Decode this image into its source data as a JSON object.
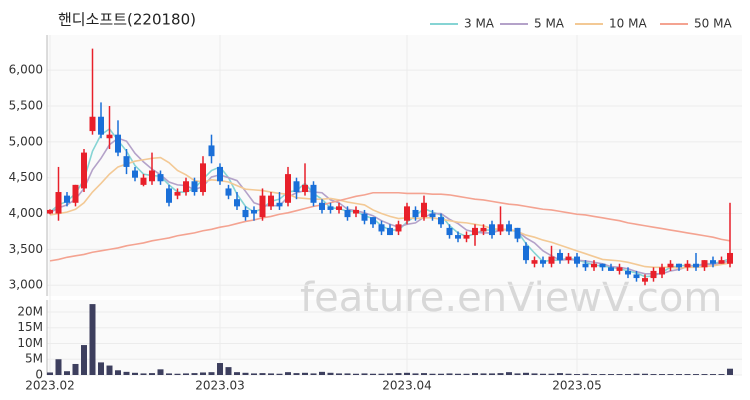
{
  "chart_data": {
    "type": "candlestick",
    "title": "핸디소프트(220180)",
    "watermark": "feature.enViewV.com",
    "categories": [
      "2023.02",
      null,
      null,
      null,
      null,
      null,
      null,
      null,
      null,
      null,
      null,
      null,
      null,
      null,
      null,
      null,
      null,
      null,
      null,
      null,
      "2023.03",
      null,
      null,
      null,
      null,
      null,
      null,
      null,
      null,
      null,
      null,
      null,
      null,
      null,
      null,
      null,
      null,
      null,
      null,
      null,
      null,
      null,
      "2023.04",
      null,
      null,
      null,
      null,
      null,
      null,
      null,
      null,
      null,
      null,
      null,
      null,
      null,
      null,
      null,
      null,
      null,
      null,
      null,
      "2023.05",
      null,
      null,
      null,
      null,
      null,
      null,
      null,
      null,
      null,
      null,
      null,
      null,
      null,
      null,
      null,
      null,
      null,
      null
    ],
    "open": [
      4000,
      4000,
      4250,
      4150,
      4350,
      5150,
      5350,
      5050,
      5100,
      4800,
      4600,
      4400,
      4450,
      4550,
      4350,
      4250,
      4300,
      4450,
      4300,
      4950,
      4650,
      4350,
      4200,
      4050,
      4050,
      3950,
      4100,
      4150,
      4150,
      4450,
      4300,
      4400,
      4150,
      4100,
      4050,
      4050,
      4000,
      4000,
      3950,
      3850,
      3800,
      3750,
      3900,
      4050,
      3950,
      4000,
      3950,
      3800,
      3700,
      3650,
      3700,
      3750,
      3850,
      3750,
      3850,
      3800,
      3550,
      3300,
      3350,
      3300,
      3450,
      3350,
      3400,
      3300,
      3250,
      3300,
      3250,
      3200,
      3200,
      3150,
      3050,
      3100,
      3150,
      3250,
      3300,
      3250,
      3300,
      3250,
      3350,
      3300,
      3300
    ],
    "high": [
      4060,
      4650,
      4300,
      4400,
      4900,
      6300,
      5550,
      5500,
      5300,
      4900,
      4650,
      4550,
      4850,
      4600,
      4400,
      4350,
      4500,
      4500,
      4800,
      5100,
      4700,
      4400,
      4300,
      4100,
      4100,
      4350,
      4300,
      4300,
      4650,
      4500,
      4700,
      4450,
      4200,
      4150,
      4150,
      4100,
      4100,
      4050,
      3950,
      3900,
      3850,
      3900,
      4150,
      4100,
      4250,
      4050,
      4000,
      3850,
      3750,
      3750,
      3850,
      3850,
      3900,
      4100,
      3900,
      3800,
      3600,
      3400,
      3400,
      3550,
      3500,
      3450,
      3450,
      3350,
      3350,
      3300,
      3300,
      3300,
      3250,
      3200,
      3150,
      3250,
      3300,
      3350,
      3300,
      3350,
      3450,
      3350,
      3400,
      3400,
      4150
    ],
    "low": [
      3990,
      3900,
      4100,
      4100,
      4300,
      5100,
      5050,
      4900,
      4800,
      4550,
      4450,
      4380,
      4400,
      4400,
      4100,
      4200,
      4250,
      4250,
      4250,
      4700,
      4400,
      4200,
      4050,
      3900,
      3900,
      3900,
      4050,
      4050,
      4100,
      4200,
      4250,
      4100,
      4000,
      4000,
      4000,
      3900,
      3950,
      3850,
      3800,
      3700,
      3700,
      3700,
      3850,
      3900,
      3900,
      3900,
      3800,
      3650,
      3600,
      3600,
      3550,
      3700,
      3650,
      3700,
      3700,
      3600,
      3300,
      3250,
      3250,
      3250,
      3300,
      3300,
      3250,
      3200,
      3200,
      3200,
      3200,
      3150,
      3100,
      3050,
      3000,
      3050,
      3100,
      3200,
      3200,
      3200,
      3200,
      3200,
      3250,
      3300,
      3250
    ],
    "close": [
      4050,
      4300,
      4150,
      4400,
      4850,
      5350,
      5100,
      5100,
      4850,
      4650,
      4500,
      4500,
      4600,
      4450,
      4150,
      4300,
      4450,
      4300,
      4700,
      4800,
      4450,
      4250,
      4100,
      3950,
      4000,
      4250,
      4250,
      4100,
      4550,
      4300,
      4400,
      4150,
      4050,
      4050,
      4100,
      3950,
      4050,
      3900,
      3850,
      3750,
      3700,
      3850,
      4100,
      3950,
      4150,
      3950,
      3850,
      3700,
      3650,
      3700,
      3800,
      3800,
      3700,
      3850,
      3750,
      3650,
      3350,
      3350,
      3300,
      3400,
      3350,
      3400,
      3300,
      3250,
      3300,
      3250,
      3200,
      3250,
      3150,
      3100,
      3100,
      3200,
      3250,
      3300,
      3250,
      3300,
      3250,
      3350,
      3300,
      3350,
      3450
    ],
    "up_color": "#e8202a",
    "down_color": "#1a6fd8",
    "ylim": [
      2850,
      6490
    ],
    "yticks": [
      {
        "value": 3000,
        "label": "3,000"
      },
      {
        "value": 3500,
        "label": "3,500"
      },
      {
        "value": 4000,
        "label": "4,000"
      },
      {
        "value": 4500,
        "label": "4,500"
      },
      {
        "value": 5000,
        "label": "5,000"
      },
      {
        "value": 5500,
        "label": "5,500"
      },
      {
        "value": 6000,
        "label": "6,000"
      }
    ],
    "series": [
      {
        "name": "3 MA",
        "color": "#86d4d4",
        "values": [
          4020,
          4120,
          4170,
          4280,
          4470,
          4870,
          5100,
          5180,
          5020,
          4870,
          4670,
          4550,
          4530,
          4520,
          4400,
          4300,
          4300,
          4350,
          4480,
          4600,
          4650,
          4500,
          4270,
          4100,
          4020,
          4070,
          4170,
          4200,
          4300,
          4320,
          4420,
          4280,
          4200,
          4080,
          4070,
          4030,
          4030,
          3970,
          3930,
          3830,
          3770,
          3770,
          3880,
          3970,
          4070,
          4020,
          3980,
          3830,
          3730,
          3680,
          3720,
          3770,
          3770,
          3780,
          3770,
          3750,
          3580,
          3450,
          3330,
          3350,
          3350,
          3380,
          3350,
          3320,
          3280,
          3270,
          3250,
          3230,
          3200,
          3170,
          3120,
          3130,
          3180,
          3250,
          3270,
          3280,
          3270,
          3300,
          3300,
          3330,
          3370
        ]
      },
      {
        "name": "5 MA",
        "color": "#b4a2c9",
        "values": [
          4010,
          4080,
          4120,
          4200,
          4350,
          4610,
          4770,
          4960,
          5050,
          5010,
          4840,
          4720,
          4620,
          4540,
          4440,
          4400,
          4390,
          4330,
          4380,
          4510,
          4540,
          4500,
          4460,
          4310,
          4150,
          4110,
          4110,
          4110,
          4230,
          4290,
          4320,
          4300,
          4290,
          4190,
          4150,
          4060,
          4040,
          4010,
          3970,
          3900,
          3850,
          3810,
          3850,
          3870,
          3950,
          4000,
          4000,
          3920,
          3860,
          3770,
          3740,
          3730,
          3730,
          3770,
          3780,
          3750,
          3660,
          3590,
          3480,
          3410,
          3350,
          3360,
          3350,
          3340,
          3320,
          3300,
          3260,
          3250,
          3230,
          3190,
          3160,
          3160,
          3160,
          3200,
          3220,
          3260,
          3270,
          3290,
          3290,
          3310,
          3340
        ]
      },
      {
        "name": "10 MA",
        "color": "#f3c995",
        "values": [
          3980,
          4000,
          4020,
          4060,
          4150,
          4300,
          4420,
          4550,
          4650,
          4690,
          4730,
          4750,
          4770,
          4780,
          4710,
          4600,
          4540,
          4460,
          4440,
          4470,
          4460,
          4440,
          4390,
          4340,
          4330,
          4320,
          4300,
          4280,
          4270,
          4220,
          4210,
          4200,
          4200,
          4210,
          4190,
          4160,
          4140,
          4120,
          4050,
          4000,
          3960,
          3930,
          3940,
          3930,
          3940,
          3940,
          3920,
          3900,
          3880,
          3870,
          3850,
          3830,
          3790,
          3780,
          3780,
          3750,
          3700,
          3670,
          3630,
          3600,
          3560,
          3520,
          3480,
          3440,
          3400,
          3360,
          3350,
          3340,
          3320,
          3290,
          3260,
          3250,
          3250,
          3250,
          3240,
          3250,
          3250,
          3260,
          3270,
          3290,
          3310
        ]
      },
      {
        "name": "50 MA",
        "color": "#f4a391",
        "values": [
          3340,
          3360,
          3390,
          3410,
          3430,
          3460,
          3480,
          3500,
          3520,
          3550,
          3570,
          3590,
          3620,
          3640,
          3660,
          3690,
          3710,
          3730,
          3760,
          3780,
          3810,
          3830,
          3860,
          3890,
          3910,
          3940,
          3960,
          3990,
          4010,
          4040,
          4070,
          4100,
          4120,
          4150,
          4180,
          4210,
          4240,
          4260,
          4290,
          4290,
          4290,
          4290,
          4280,
          4280,
          4280,
          4270,
          4270,
          4260,
          4240,
          4220,
          4200,
          4190,
          4170,
          4150,
          4130,
          4120,
          4100,
          4080,
          4060,
          4050,
          4030,
          4010,
          3990,
          3980,
          3960,
          3940,
          3920,
          3900,
          3870,
          3850,
          3830,
          3810,
          3790,
          3770,
          3750,
          3730,
          3710,
          3690,
          3670,
          3640,
          3620
        ]
      }
    ],
    "volume": {
      "color": "#3d3f5e",
      "ylim": [
        0,
        23800000
      ],
      "yticks": [
        0,
        {
          "value": 5000000,
          "label": "5M"
        },
        {
          "value": 10000000,
          "label": "10M"
        },
        {
          "value": 15000000,
          "label": "15M"
        },
        {
          "value": 20000000,
          "label": "20M"
        }
      ],
      "values": [
        800000,
        5000000,
        1200000,
        3500000,
        9500000,
        22500000,
        4000000,
        3000000,
        1500000,
        1000000,
        700000,
        500000,
        600000,
        1800000,
        500000,
        400000,
        500000,
        600000,
        800000,
        900000,
        3800000,
        2500000,
        900000,
        700000,
        500000,
        600000,
        500000,
        400000,
        900000,
        600000,
        700000,
        500000,
        1000000,
        700000,
        500000,
        500000,
        400000,
        500000,
        400000,
        400000,
        500000,
        600000,
        700000,
        500000,
        600000,
        400000,
        400000,
        500000,
        400000,
        400000,
        600000,
        500000,
        500000,
        600000,
        900000,
        500000,
        700000,
        500000,
        400000,
        400000,
        600000,
        400000,
        300000,
        400000,
        300000,
        300000,
        300000,
        300000,
        300000,
        400000,
        400000,
        300000,
        300000,
        300000,
        300000,
        300000,
        300000,
        300000,
        300000,
        300000,
        2000000
      ]
    }
  }
}
